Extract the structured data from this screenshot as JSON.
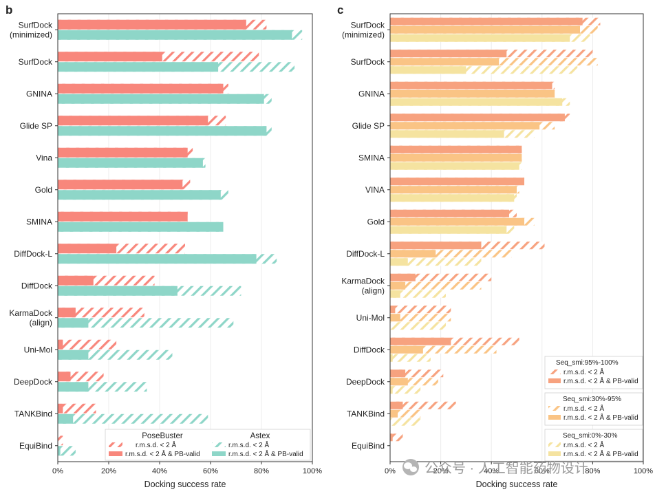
{
  "panels": [
    {
      "letter": "b",
      "xlabel": "Docking success rate",
      "series_colors": {
        "PoseBuster": "#f8877c",
        "Astex": "#8ed6c8"
      },
      "legend": {
        "groups": [
          {
            "title": "PoseBuster",
            "hatch_label": "r.m.s.d. < 2 Å",
            "solid_label": "r.m.s.d. < 2 Å & PB-valid"
          },
          {
            "title": "Astex",
            "hatch_label": "r.m.s.d. < 2 Å",
            "solid_label": "r.m.s.d. < 2 Å & PB-valid"
          }
        ]
      }
    },
    {
      "letter": "c",
      "xlabel": "Docking success rate",
      "series_colors": {
        "Seq_smi:95%-100%": "#f7a27f",
        "Seq_smi:30%-95%": "#fac485",
        "Seq_smi:0%-30%": "#f5e3a0"
      },
      "legend": {
        "groups": [
          {
            "title": "Seq_smi:95%-100%",
            "hatch_label": "r.m.s.d. < 2 Å",
            "solid_label": "r.m.s.d. < 2 Å & PB-valid"
          },
          {
            "title": "Seq_smi:30%-95%",
            "hatch_label": "r.m.s.d. < 2 Å",
            "solid_label": "r.m.s.d. < 2 Å & PB-valid"
          },
          {
            "title": "Seq_smi:0%-30%",
            "hatch_label": "r.m.s.d. < 2 Å",
            "solid_label": "r.m.s.d. < 2 Å & PB-valid"
          }
        ]
      }
    }
  ],
  "watermark": "公众号 · 人工智能药物设计",
  "chart_data": [
    {
      "type": "bar",
      "orientation": "horizontal",
      "xlabel": "Docking success rate",
      "xlim": [
        0,
        100
      ],
      "xticks": [
        "0%",
        "20%",
        "40%",
        "60%",
        "80%",
        "100%"
      ],
      "grid": true,
      "legend_position": "bottom-right",
      "categories": [
        "SurfDock\n(minimized)",
        "SurfDock",
        "GNINA",
        "Glide SP",
        "Vina",
        "Gold",
        "SMINA",
        "DiffDock-L",
        "DiffDock",
        "KarmaDock\n(align)",
        "Uni-Mol",
        "DeepDock",
        "TANKBind",
        "EquiBind"
      ],
      "series": [
        {
          "name": "PoseBuster",
          "rmsd_lt_2A": [
            82,
            79,
            67,
            66,
            53,
            52,
            51,
            50,
            38,
            34,
            23,
            18,
            15,
            2
          ],
          "rmsd_lt_2A_and_pb_valid": [
            74,
            41,
            65,
            59,
            51,
            49,
            51,
            23,
            14,
            7,
            2,
            5,
            2,
            0
          ]
        },
        {
          "name": "Astex",
          "rmsd_lt_2A": [
            96,
            93,
            84,
            84,
            58,
            67,
            65,
            86,
            72,
            69,
            45,
            35,
            59,
            7
          ],
          "rmsd_lt_2A_and_pb_valid": [
            92,
            63,
            81,
            82,
            57,
            64,
            65,
            78,
            47,
            12,
            12,
            12,
            6,
            1
          ]
        }
      ]
    },
    {
      "type": "bar",
      "orientation": "horizontal",
      "xlabel": "Docking success rate",
      "xlim": [
        0,
        100
      ],
      "xticks": [
        "0%",
        "20%",
        "40%",
        "60%",
        "80%",
        "100%"
      ],
      "grid": true,
      "legend_position": "bottom-right",
      "categories": [
        "SurfDock\n(minimized)",
        "SurfDock",
        "GNINA",
        "Glide SP",
        "SMINA",
        "VINA",
        "Gold",
        "DiffDock-L",
        "KarmaDock\n(align)",
        "Uni-Mol",
        "DiffDock",
        "DeepDock",
        "TANKBind",
        "EquiBind"
      ],
      "series": [
        {
          "name": "Seq_smi:95%-100%",
          "rmsd_lt_2A": [
            83,
            80,
            65,
            71,
            52,
            53,
            50,
            61,
            40,
            24,
            51,
            21,
            26,
            5
          ],
          "rmsd_lt_2A_and_pb_valid": [
            76,
            46,
            64,
            69,
            52,
            53,
            47,
            36,
            10,
            2,
            24,
            6,
            5,
            1
          ]
        },
        {
          "name": "Seq_smi:30%-95%",
          "rmsd_lt_2A": [
            82,
            82,
            65,
            65,
            52,
            51,
            57,
            48,
            36,
            24,
            42,
            19,
            12,
            0
          ],
          "rmsd_lt_2A_and_pb_valid": [
            75,
            43,
            65,
            59,
            52,
            50,
            53,
            18,
            6,
            4,
            13,
            7,
            3,
            0
          ]
        },
        {
          "name": "Seq_smi:0%-30%",
          "rmsd_lt_2A": [
            79,
            74,
            71,
            57,
            52,
            50,
            49,
            36,
            22,
            22,
            16,
            12,
            12,
            0
          ],
          "rmsd_lt_2A_and_pb_valid": [
            71,
            30,
            68,
            45,
            51,
            49,
            46,
            7,
            4,
            0,
            1,
            1,
            0,
            0
          ]
        }
      ]
    }
  ]
}
